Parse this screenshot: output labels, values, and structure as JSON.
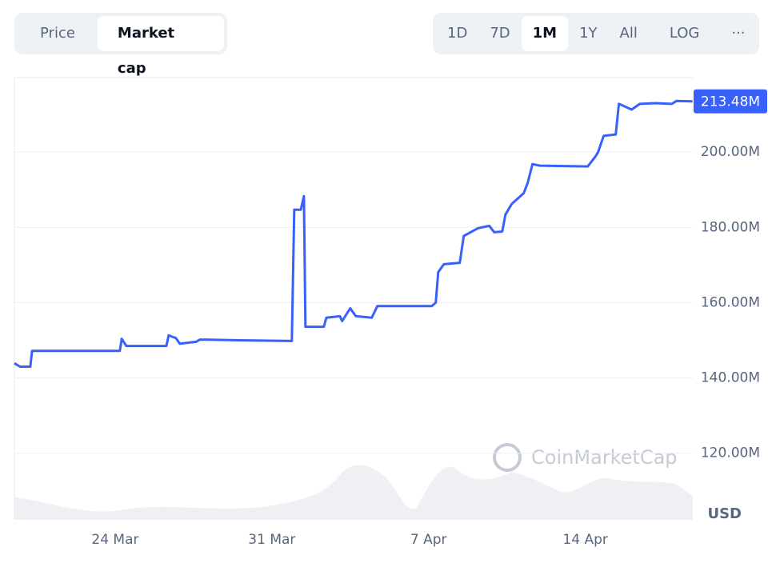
{
  "tabs": [
    "Price",
    "Market cap"
  ],
  "active_tab": "Market cap",
  "ranges": [
    "1D",
    "7D",
    "1M",
    "1Y",
    "All"
  ],
  "active_range": "1M",
  "scale_button": "LOG",
  "more_button": "···",
  "watermark": "CoinMarketCap",
  "currency": "USD",
  "chart_data": {
    "type": "line",
    "color": "#3861fb",
    "grid": true,
    "x": [
      0,
      0.25,
      0.71,
      0.79,
      4.71,
      4.79,
      5,
      6.79,
      6.89,
      7.21,
      7.39,
      8.11,
      8.29,
      10.07,
      12.39,
      12.5,
      12.79,
      12.93,
      13,
      13.82,
      13.93,
      14.54,
      14.64,
      15,
      15.25,
      15.96,
      16.21,
      18.64,
      18.82,
      18.93,
      19.18,
      19.89,
      20.07,
      20.71,
      21.21,
      21.43,
      21.79,
      21.93,
      22.21,
      22.75,
      22.93,
      23.14,
      23.46,
      25.61,
      25.96,
      26.07,
      26.32,
      26.86,
      27,
      27.57,
      27.93,
      28.64,
      29.36,
      29.57,
      30.29
    ],
    "values": [
      143.9,
      143,
      143,
      147.2,
      147.2,
      150.4,
      148.5,
      148.5,
      151.3,
      150.6,
      149.1,
      149.6,
      150.2,
      150,
      149.8,
      184.7,
      184.7,
      188.3,
      153.6,
      153.6,
      156,
      156.4,
      155.1,
      158.5,
      156.4,
      156,
      159.1,
      159.1,
      160,
      168.1,
      170.2,
      170.6,
      177.7,
      179.8,
      180.4,
      178.7,
      178.9,
      183.4,
      186.2,
      189.1,
      191.9,
      196.8,
      196.4,
      196.2,
      198.9,
      200,
      204.3,
      204.7,
      212.8,
      211.3,
      212.8,
      213,
      212.8,
      213.6,
      213.48
    ],
    "current": {
      "value": 213.48,
      "label": "213.48M"
    },
    "xlim": [
      0,
      30.3
    ],
    "xticks": [
      {
        "value": 4.5,
        "label": "24 Mar"
      },
      {
        "value": 11.5,
        "label": "31 Mar"
      },
      {
        "value": 18.5,
        "label": "7 Apr"
      },
      {
        "value": 25.5,
        "label": "14 Apr"
      }
    ],
    "ylim": [
      102.3,
      219.8
    ],
    "yticks": [
      {
        "value": 120,
        "label": "120.00M"
      },
      {
        "value": 140,
        "label": "140.00M"
      },
      {
        "value": 160,
        "label": "160.00M"
      },
      {
        "value": 180,
        "label": "180.00M"
      },
      {
        "value": 200,
        "label": "200.00M"
      }
    ]
  }
}
